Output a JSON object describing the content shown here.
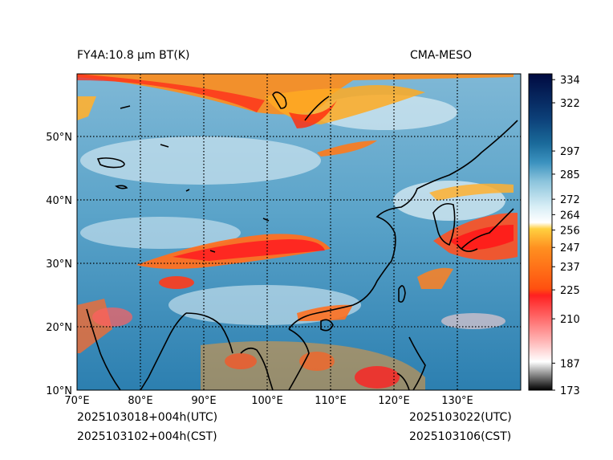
{
  "header": {
    "product": "FY4A:10.8 µm BT(K)",
    "source": "CMA-MESO"
  },
  "footer": {
    "forecast_utc": "2025103018+004h(UTC)",
    "forecast_cst": "2025103102+004h(CST)",
    "valid_utc": "2025103022(UTC)",
    "valid_cst": "2025103106(CST)"
  },
  "map": {
    "lon_range": [
      70,
      140
    ],
    "lat_range": [
      10,
      60
    ],
    "lon_ticks": [
      {
        "value": 70,
        "label": "70°E"
      },
      {
        "value": 80,
        "label": "80°E"
      },
      {
        "value": 90,
        "label": "90°E"
      },
      {
        "value": 100,
        "label": "100°E"
      },
      {
        "value": 110,
        "label": "110°E"
      },
      {
        "value": 120,
        "label": "120°E"
      },
      {
        "value": 130,
        "label": "130°E"
      }
    ],
    "lat_ticks": [
      {
        "value": 10,
        "label": "10°N"
      },
      {
        "value": 20,
        "label": "20°N"
      },
      {
        "value": 30,
        "label": "30°N"
      },
      {
        "value": 40,
        "label": "40°N"
      },
      {
        "value": 50,
        "label": "50°N"
      }
    ]
  },
  "colorbar": {
    "range": [
      173,
      337
    ],
    "ticks": [
      173,
      187,
      210,
      225,
      237,
      247,
      256,
      264,
      272,
      285,
      297,
      322,
      334
    ],
    "tick_labels": [
      "173",
      "187",
      "210",
      "225",
      "237",
      "247",
      "256",
      "264",
      "272",
      "285",
      "297",
      "322",
      "334"
    ],
    "colors": {
      "black": "#000000",
      "gray": "#8c8c8c",
      "white": "#ffffff",
      "pink": "#ff8c8c",
      "red": "#ff1a1a",
      "orange": "#ff6a00",
      "yellow": "#ffcc33",
      "lightblue": "#cfe6f2",
      "midblue": "#4d9cc4",
      "blue": "#1a6fa0",
      "darkblue": "#0a2a66",
      "navy": "#001040"
    }
  }
}
